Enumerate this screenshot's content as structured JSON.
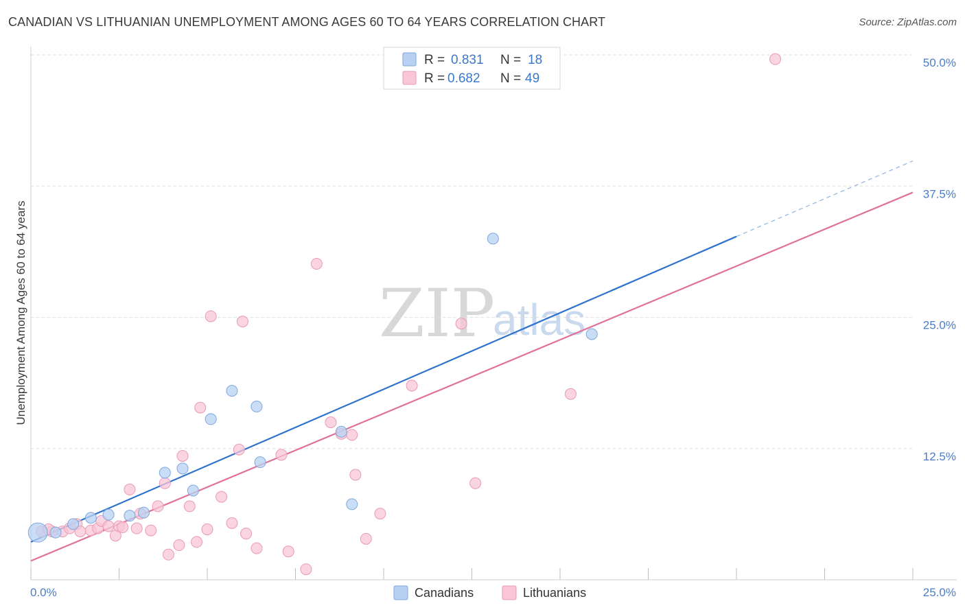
{
  "title": "CANADIAN VS LITHUANIAN UNEMPLOYMENT AMONG AGES 60 TO 64 YEARS CORRELATION CHART",
  "source": "Source: ZipAtlas.com",
  "watermark": {
    "zip": "ZIP",
    "atlas": "atlas"
  },
  "legend_box": [
    {
      "r_label": "R =",
      "r_value": "0.831",
      "n_label": "N =",
      "n_value": "18"
    },
    {
      "r_label": "R =",
      "r_value": "0.682",
      "n_label": "N =",
      "n_value": "49"
    }
  ],
  "colors": {
    "canadians_fill": "#b8d1f3",
    "canadians_stroke": "#7ea6db",
    "canadians_line": "#2e72cc",
    "lithuanians_fill": "#f8c6d6",
    "lithuanians_stroke": "#e99ab5",
    "lithuanians_line": "#e07098",
    "grid": "#dddddd",
    "tick_text": "#4a7cc9"
  },
  "chart_data": {
    "type": "scatter",
    "title": "CANADIAN VS LITHUANIAN UNEMPLOYMENT AMONG AGES 60 TO 64 YEARS CORRELATION CHART",
    "xlabel": "",
    "ylabel": "Unemployment Among Ages 60 to 64 years",
    "xlim": [
      0,
      25
    ],
    "ylim": [
      0,
      50
    ],
    "x_tick_labels": [
      "0.0%",
      "25.0%"
    ],
    "y_ticks": [
      12.5,
      25.0,
      37.5,
      50.0
    ],
    "y_tick_labels": [
      "12.5%",
      "25.0%",
      "37.5%",
      "50.0%"
    ],
    "grid": "horizontal dashed",
    "legend_position": "top-center and bottom",
    "series": [
      {
        "name": "Canadians",
        "points": [
          [
            0.2,
            4.5
          ],
          [
            0.7,
            4.5
          ],
          [
            1.2,
            5.3
          ],
          [
            1.7,
            5.9
          ],
          [
            2.2,
            6.2
          ],
          [
            2.8,
            6.1
          ],
          [
            3.2,
            6.4
          ],
          [
            3.8,
            10.2
          ],
          [
            4.3,
            10.6
          ],
          [
            4.6,
            8.5
          ],
          [
            5.1,
            15.3
          ],
          [
            5.7,
            18.0
          ],
          [
            6.4,
            16.5
          ],
          [
            6.5,
            11.2
          ],
          [
            8.8,
            14.1
          ],
          [
            9.1,
            7.2
          ],
          [
            13.1,
            32.5
          ],
          [
            15.9,
            23.4
          ]
        ],
        "trend": {
          "x": [
            0,
            20
          ],
          "y": [
            3.6,
            32.7
          ]
        },
        "trend_dashed_extension": {
          "x": [
            20,
            25
          ],
          "y": [
            32.7,
            39.9
          ]
        }
      },
      {
        "name": "Lithuanians",
        "points": [
          [
            0.3,
            4.6
          ],
          [
            0.6,
            4.6
          ],
          [
            0.9,
            4.6
          ],
          [
            1.1,
            4.9
          ],
          [
            1.3,
            5.3
          ],
          [
            1.4,
            4.6
          ],
          [
            1.7,
            4.7
          ],
          [
            1.9,
            4.9
          ],
          [
            2.0,
            5.6
          ],
          [
            2.2,
            5.1
          ],
          [
            2.4,
            4.2
          ],
          [
            2.5,
            5.1
          ],
          [
            2.8,
            8.6
          ],
          [
            3.0,
            4.9
          ],
          [
            3.1,
            6.3
          ],
          [
            3.4,
            4.7
          ],
          [
            3.6,
            7.0
          ],
          [
            3.8,
            9.2
          ],
          [
            3.9,
            2.4
          ],
          [
            4.2,
            3.3
          ],
          [
            4.3,
            11.8
          ],
          [
            4.5,
            7.0
          ],
          [
            4.7,
            3.6
          ],
          [
            4.8,
            16.4
          ],
          [
            5.0,
            4.8
          ],
          [
            5.1,
            25.1
          ],
          [
            5.4,
            7.9
          ],
          [
            5.7,
            5.4
          ],
          [
            5.9,
            12.4
          ],
          [
            6.0,
            24.6
          ],
          [
            6.1,
            4.4
          ],
          [
            6.4,
            3.0
          ],
          [
            7.1,
            11.9
          ],
          [
            7.3,
            2.7
          ],
          [
            7.8,
            1.0
          ],
          [
            8.1,
            30.1
          ],
          [
            8.5,
            15.0
          ],
          [
            8.8,
            13.9
          ],
          [
            9.1,
            13.8
          ],
          [
            9.2,
            10.0
          ],
          [
            9.5,
            3.9
          ],
          [
            9.9,
            6.3
          ],
          [
            10.8,
            18.5
          ],
          [
            12.2,
            24.4
          ],
          [
            12.6,
            9.2
          ],
          [
            15.3,
            17.7
          ],
          [
            21.1,
            49.6
          ],
          [
            0.5,
            4.8
          ],
          [
            2.6,
            5.0
          ]
        ],
        "trend": {
          "x": [
            0,
            25
          ],
          "y": [
            1.8,
            36.9
          ]
        }
      }
    ]
  },
  "bottom_legend": [
    {
      "label": "Canadians"
    },
    {
      "label": "Lithuanians"
    }
  ]
}
